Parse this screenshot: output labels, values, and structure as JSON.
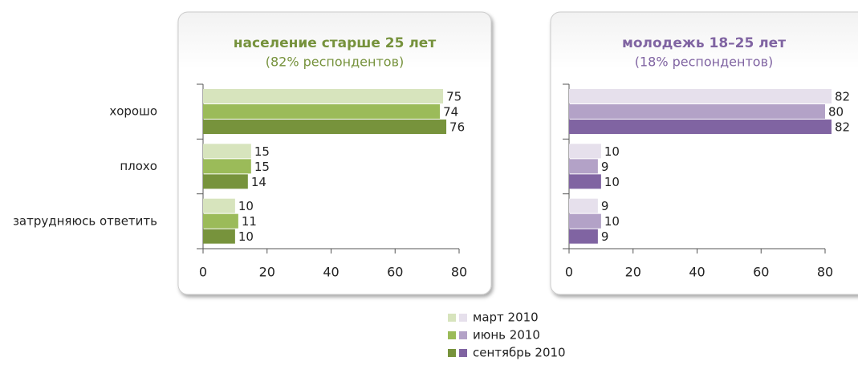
{
  "chart_data": [
    {
      "type": "bar",
      "title": "население старше 25 лет",
      "subtitle": "(82% респондентов)",
      "categories": [
        "хорошо",
        "плохо",
        "затрудняюсь ответить"
      ],
      "series": [
        {
          "name": "март 2010",
          "color": "#d7e4bd",
          "values": [
            75,
            15,
            10
          ]
        },
        {
          "name": "июнь 2010",
          "color": "#9bbb59",
          "values": [
            74,
            15,
            11
          ]
        },
        {
          "name": "сентябрь 2010",
          "color": "#77933c",
          "values": [
            76,
            14,
            10
          ]
        }
      ],
      "xlim": [
        0,
        80
      ],
      "xticks": [
        0,
        20,
        40,
        60,
        80
      ],
      "title_color": "#76923c"
    },
    {
      "type": "bar",
      "title": "молодежь 18–25 лет",
      "subtitle": "(18% респондентов)",
      "series": [
        {
          "color": "#e6e0ec",
          "values": [
            82,
            10,
            9
          ]
        },
        {
          "color": "#b3a2c7",
          "values": [
            80,
            9,
            10
          ]
        },
        {
          "color": "#8064a2",
          "values": [
            82,
            10,
            9
          ]
        }
      ],
      "xlim": [
        0,
        80
      ],
      "xticks": [
        0,
        20,
        40,
        60,
        80
      ],
      "title_color": "#8064a2"
    }
  ]
}
